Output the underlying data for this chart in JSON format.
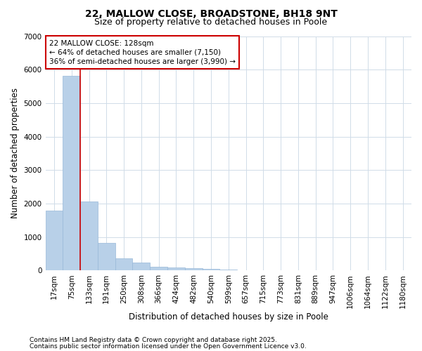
{
  "title_line1": "22, MALLOW CLOSE, BROADSTONE, BH18 9NT",
  "title_line2": "Size of property relative to detached houses in Poole",
  "xlabel": "Distribution of detached houses by size in Poole",
  "ylabel": "Number of detached properties",
  "categories": [
    "17sqm",
    "75sqm",
    "133sqm",
    "191sqm",
    "250sqm",
    "308sqm",
    "366sqm",
    "424sqm",
    "482sqm",
    "540sqm",
    "599sqm",
    "657sqm",
    "715sqm",
    "773sqm",
    "831sqm",
    "889sqm",
    "947sqm",
    "1006sqm",
    "1064sqm",
    "1122sqm",
    "1180sqm"
  ],
  "values": [
    1780,
    5820,
    2070,
    820,
    370,
    230,
    120,
    100,
    70,
    50,
    30,
    0,
    0,
    0,
    0,
    0,
    0,
    0,
    0,
    0,
    0
  ],
  "bar_color": "#b8d0e8",
  "bar_edge_color": "#98b8d8",
  "vline_color": "#cc0000",
  "annotation_title": "22 MALLOW CLOSE: 128sqm",
  "annotation_line2": "← 64% of detached houses are smaller (7,150)",
  "annotation_line3": "36% of semi-detached houses are larger (3,990) →",
  "annotation_box_color": "#cc0000",
  "figure_background": "#ffffff",
  "plot_background": "#ffffff",
  "ylim": [
    0,
    7000
  ],
  "yticks": [
    0,
    1000,
    2000,
    3000,
    4000,
    5000,
    6000,
    7000
  ],
  "grid_color": "#d0dce8",
  "title_fontsize": 10,
  "subtitle_fontsize": 9,
  "axis_label_fontsize": 8.5,
  "tick_fontsize": 7.5,
  "annotation_fontsize": 7.5,
  "footer_fontsize": 6.5,
  "footer_line1": "Contains HM Land Registry data © Crown copyright and database right 2025.",
  "footer_line2": "Contains public sector information licensed under the Open Government Licence v3.0."
}
